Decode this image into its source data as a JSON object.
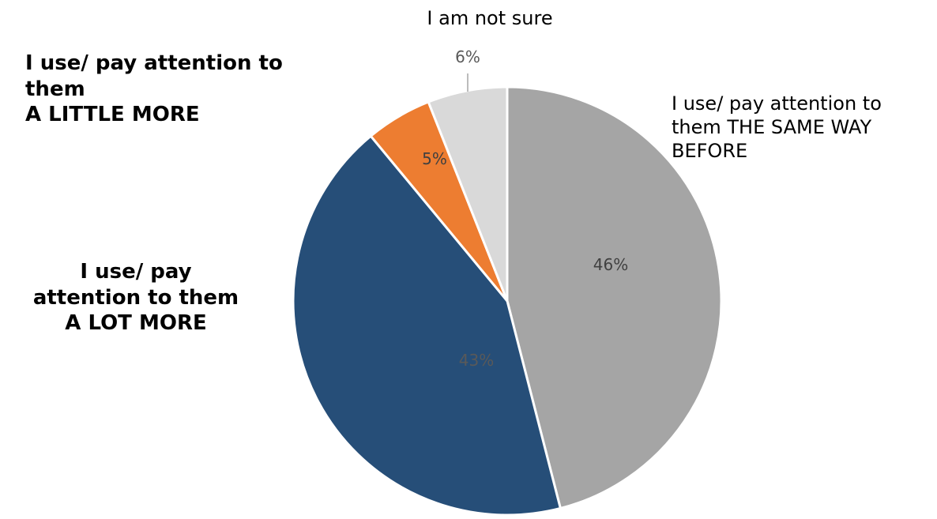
{
  "chart_data": {
    "type": "pie",
    "start_angle_deg": 0,
    "direction": "clockwise",
    "slices": [
      {
        "label": "I use/ pay attention to them THE SAME WAY BEFORE",
        "value": 46,
        "display": "46%",
        "color": "#a5a5a5"
      },
      {
        "label": "I use/ pay attention to them A LOT MORE",
        "value": 43,
        "display": "43%",
        "color": "#264e78"
      },
      {
        "label": "I use/ pay attention to them A LITTLE MORE",
        "value": 5,
        "display": "5%",
        "color": "#ed7d31"
      },
      {
        "label": "I am not sure",
        "value": 6,
        "display": "6%",
        "color": "#d9d9d9"
      }
    ]
  },
  "labels": {
    "same_way": "I use/ pay attention to\nthem THE SAME WAY\nBEFORE",
    "lot_more": "I use/ pay\nattention to them\nA LOT MORE",
    "little_more": "I use/ pay attention to\nthem\nA LITTLE MORE",
    "not_sure": "I am not sure"
  }
}
